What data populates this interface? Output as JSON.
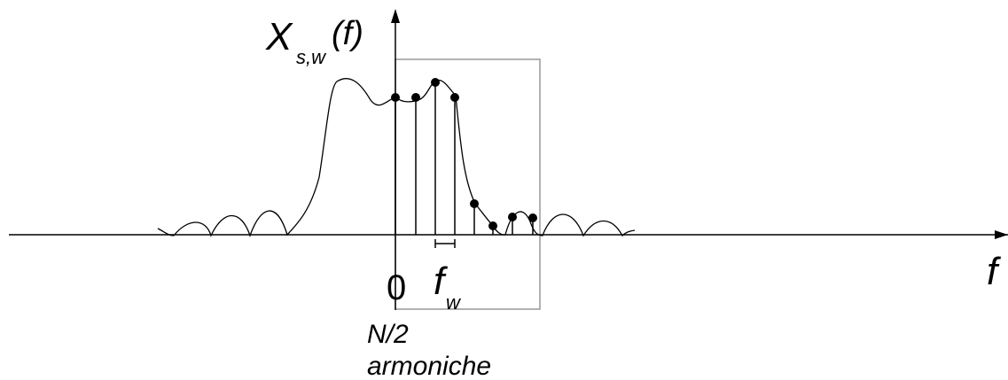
{
  "labels": {
    "y_axis_main": "X",
    "y_axis_sub": "s,w",
    "y_axis_arg": "(f)",
    "origin": "0",
    "x_axis": "f",
    "spacing_main": "f",
    "spacing_sub": "w",
    "window_note_line1": "N/2",
    "window_note_line2": "armoniche"
  },
  "spectrum": {
    "sample_count": 8,
    "sample_heights_rel": [
      0.84,
      0.84,
      0.91,
      0.84,
      0.19,
      0.05,
      0.12,
      0.11
    ]
  },
  "colors": {
    "ink": "#000000",
    "window_frame": "#999999"
  }
}
